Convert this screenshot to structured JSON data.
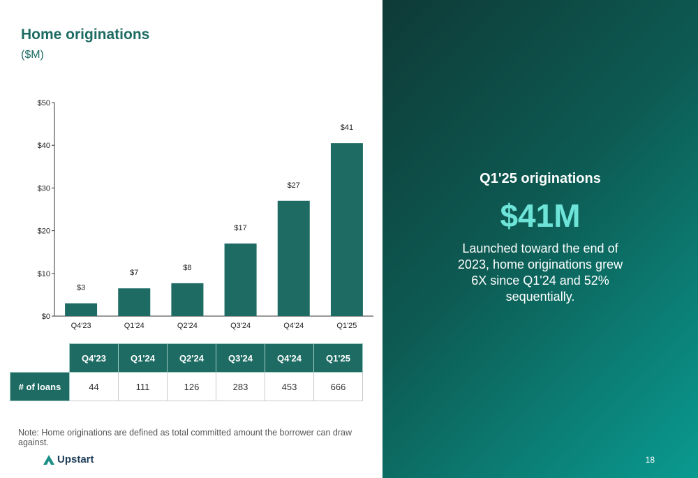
{
  "header": {
    "title": "Home originations",
    "subtitle": "($M)"
  },
  "chart_data": {
    "type": "bar",
    "categories": [
      "Q4'23",
      "Q1'24",
      "Q2'24",
      "Q3'24",
      "Q4'24",
      "Q1'25"
    ],
    "values": [
      3,
      6.5,
      7.7,
      17,
      27,
      40.5
    ],
    "data_labels": [
      "$3",
      "$7",
      "$8",
      "$17",
      "$27",
      "$41"
    ],
    "y_ticks": [
      "$0",
      "$10",
      "$20",
      "$30",
      "$40",
      "$50"
    ],
    "ylim": [
      0,
      50
    ],
    "grid": false,
    "bar_color": "#1d6b63"
  },
  "loans_table": {
    "headers": [
      "Q4'23",
      "Q1'24",
      "Q2'24",
      "Q3'24",
      "Q4'24",
      "Q1'25"
    ],
    "row_label": "# of loans",
    "values": [
      "44",
      "111",
      "126",
      "283",
      "453",
      "666"
    ]
  },
  "note": "Note: Home originations are defined as total committed amount the borrower can draw against.",
  "logo": {
    "text": "Upstart",
    "icon": "upstart-logo-icon"
  },
  "panel": {
    "heading": "Q1'25 originations",
    "value": "$41M",
    "description": "Launched toward the end of 2023, home originations grew 6X since Q1'24 and 52% sequentially."
  },
  "page_number": "18",
  "colors": {
    "accent": "#1d6b63",
    "highlight": "#6ee3d8"
  }
}
